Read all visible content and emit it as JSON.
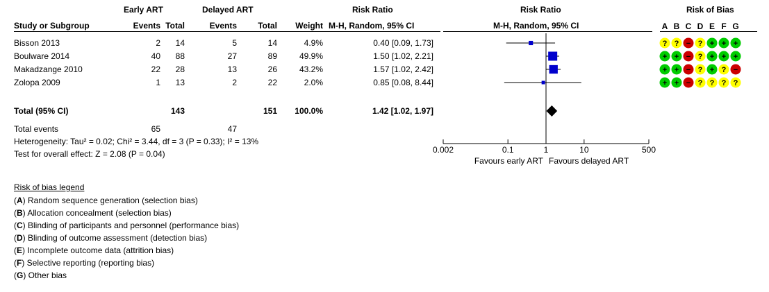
{
  "header": {
    "group1": "Early ART",
    "group2": "Delayed ART",
    "rr_title": "Risk Ratio",
    "rob_title": "Risk of Bias",
    "col_study": "Study or Subgroup",
    "col_events1": "Events",
    "col_total1": "Total",
    "col_events2": "Events",
    "col_total2": "Total",
    "col_weight": "Weight",
    "col_method": "M-H, Random, 95% CI",
    "plot_method": "M-H, Random, 95% CI",
    "rob_letters": [
      "A",
      "B",
      "C",
      "D",
      "E",
      "F",
      "G"
    ]
  },
  "studies": [
    {
      "name": "Bisson 2013",
      "events1": "2",
      "total1": "14",
      "events2": "5",
      "total2": "14",
      "weight": "4.9%",
      "ci_text": "0.40 [0.09, 1.73]"
    },
    {
      "name": "Boulware 2014",
      "events1": "40",
      "total1": "88",
      "events2": "27",
      "total2": "89",
      "weight": "49.9%",
      "ci_text": "1.50 [1.02, 2.21]"
    },
    {
      "name": "Makadzange 2010",
      "events1": "22",
      "total1": "28",
      "events2": "13",
      "total2": "26",
      "weight": "43.2%",
      "ci_text": "1.57 [1.02, 2.42]"
    },
    {
      "name": "Zolopa 2009",
      "events1": "1",
      "total1": "13",
      "events2": "2",
      "total2": "22",
      "weight": "2.0%",
      "ci_text": "0.85 [0.08, 8.44]"
    }
  ],
  "total": {
    "label": "Total (95% CI)",
    "total1": "143",
    "total2": "151",
    "weight": "100.0%",
    "ci_text": "1.42 [1.02, 1.97]"
  },
  "total_events": {
    "label": "Total events",
    "events1": "65",
    "events2": "47"
  },
  "heterogeneity": "Heterogeneity: Tau² = 0.02; Chi² = 3.44, df = 3 (P = 0.33); I² = 13%",
  "overall_effect": "Test for overall effect: Z = 2.08 (P = 0.04)",
  "axis": {
    "ticks": [
      "0.002",
      "0.1",
      "1",
      "10",
      "500"
    ],
    "favours_left": "Favours early ART",
    "favours_right": "Favours delayed ART"
  },
  "legend": {
    "title": "Risk of bias legend",
    "items": [
      {
        "key": "A",
        "text": " Random sequence generation (selection bias)"
      },
      {
        "key": "B",
        "text": " Allocation concealment (selection bias)"
      },
      {
        "key": "C",
        "text": " Blinding of participants and personnel (performance bias)"
      },
      {
        "key": "D",
        "text": " Blinding of outcome assessment (detection bias)"
      },
      {
        "key": "E",
        "text": " Incomplete outcome data (attrition bias)"
      },
      {
        "key": "F",
        "text": " Selective reporting (reporting bias)"
      },
      {
        "key": "G",
        "text": " Other bias"
      }
    ]
  },
  "rob_symbols": {
    "low": "+",
    "unclear": "?",
    "high": "−"
  },
  "colors": {
    "low": "#00cc00",
    "unclear": "#ffff00",
    "high": "#cc0000",
    "square": "#0000cc",
    "diamond": "#000000"
  },
  "chart_data": {
    "type": "forest",
    "scale": "log",
    "xlim": [
      0.002,
      500
    ],
    "x_ticks": [
      0.002,
      0.1,
      1,
      10,
      500
    ],
    "null_line": 1,
    "series": [
      {
        "study": "Bisson 2013",
        "rr": 0.4,
        "lower": 0.09,
        "upper": 1.73,
        "weight": 4.9
      },
      {
        "study": "Boulware 2014",
        "rr": 1.5,
        "lower": 1.02,
        "upper": 2.21,
        "weight": 49.9
      },
      {
        "study": "Makadzange 2010",
        "rr": 1.57,
        "lower": 1.02,
        "upper": 2.42,
        "weight": 43.2
      },
      {
        "study": "Zolopa 2009",
        "rr": 0.85,
        "lower": 0.08,
        "upper": 8.44,
        "weight": 2.0
      }
    ],
    "pooled": {
      "rr": 1.42,
      "lower": 1.02,
      "upper": 1.97
    },
    "risk_of_bias": [
      [
        "unclear",
        "unclear",
        "high",
        "unclear",
        "low",
        "low",
        "low"
      ],
      [
        "low",
        "low",
        "high",
        "unclear",
        "low",
        "low",
        "low"
      ],
      [
        "low",
        "low",
        "high",
        "unclear",
        "low",
        "unclear",
        "high"
      ],
      [
        "low",
        "low",
        "high",
        "unclear",
        "unclear",
        "unclear",
        "unclear"
      ]
    ]
  }
}
